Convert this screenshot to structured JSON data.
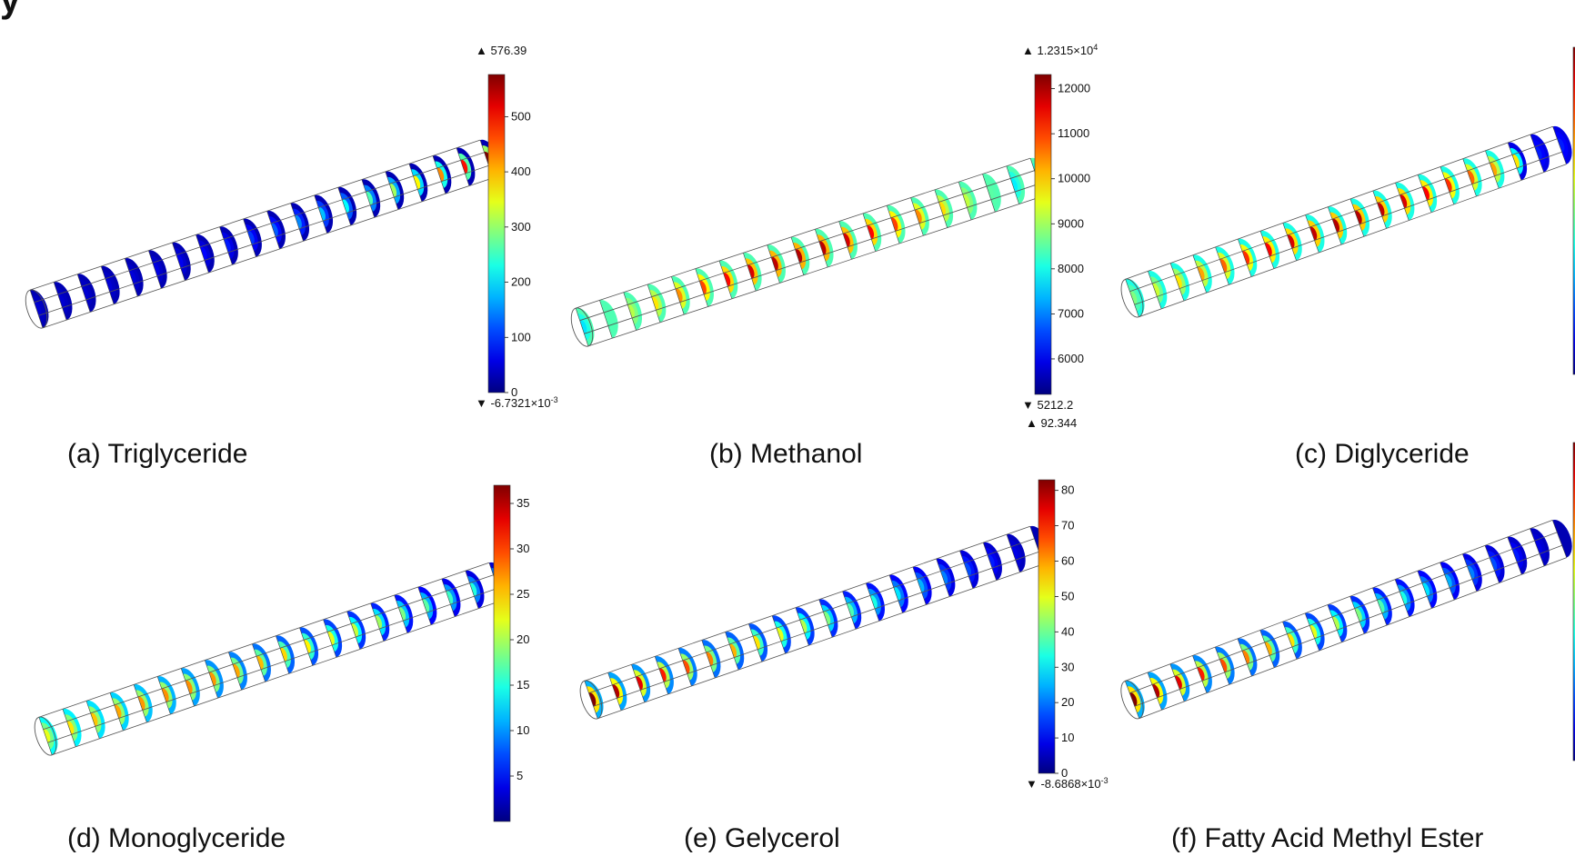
{
  "fragment": "y",
  "panels": [
    {
      "id": "a",
      "caption": "(a) Triglyceride",
      "colorbar": {
        "max_label": "576.39",
        "min_label": "-6.7321×10",
        "min_exp": "-3",
        "min": 0,
        "max": 576.39,
        "ticks": [
          0,
          100,
          200,
          300,
          400,
          500
        ]
      },
      "field": "decreasing-to-left"
    },
    {
      "id": "b",
      "caption": "(b) Methanol",
      "colorbar": {
        "max_label": "1.2315×10",
        "max_exp": "4",
        "min_label": "5212.2",
        "min": 5212.2,
        "max": 12315,
        "ticks": [
          6000,
          7000,
          8000,
          9000,
          10000,
          11000,
          12000
        ],
        "next_label": "92.344"
      },
      "field": "peak-middle"
    },
    {
      "id": "c",
      "caption": "(c) Diglyceride",
      "colorbar": {
        "min": 0,
        "max": 1,
        "ticks": []
      },
      "field": "peak-middle-dark-right"
    },
    {
      "id": "d",
      "caption": "(d) Monoglyceride",
      "colorbar": {
        "min": 0,
        "max": 37,
        "ticks": [
          5,
          10,
          15,
          20,
          25,
          30,
          35
        ]
      },
      "field": "peak-left"
    },
    {
      "id": "e",
      "caption": "(e) Gelycerol",
      "colorbar": {
        "min_label": "-8.6868×10",
        "min_exp": "-3",
        "min": 0,
        "max": 83,
        "ticks": [
          0,
          10,
          20,
          30,
          40,
          50,
          60,
          70,
          80
        ]
      },
      "field": "peak-left-strong"
    },
    {
      "id": "f",
      "caption": "(f) Fatty Acid Methyl Ester",
      "colorbar": {
        "min": 0,
        "max": 1,
        "ticks": []
      },
      "field": "peak-left-strong"
    }
  ]
}
